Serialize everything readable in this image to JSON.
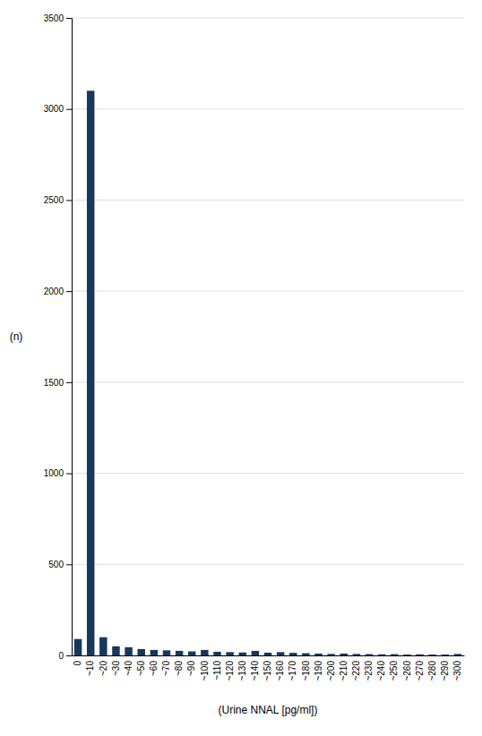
{
  "chart_data": {
    "type": "bar",
    "categories": [
      "0",
      "~10",
      "~20",
      "~30",
      "~40",
      "~50",
      "~60",
      "~70",
      "~80",
      "~90",
      "~100",
      "~110",
      "~120",
      "~130",
      "~140",
      "~150",
      "~160",
      "~170",
      "~180",
      "~190",
      "~200",
      "~210",
      "~220",
      "~230",
      "~240",
      "~250",
      "~260",
      "~270",
      "~280",
      "~290",
      "~300"
    ],
    "values": [
      90,
      3100,
      100,
      50,
      45,
      35,
      30,
      28,
      25,
      22,
      30,
      20,
      18,
      16,
      25,
      15,
      18,
      14,
      12,
      10,
      8,
      10,
      8,
      7,
      6,
      7,
      5,
      6,
      5,
      5,
      8
    ],
    "color": "#17375E",
    "xlabel": "(Urine NNAL [pg/ml])",
    "ylabel": "(n)",
    "ylim": [
      0,
      3500
    ],
    "yticks": [
      0,
      500,
      1000,
      1500,
      2000,
      2500,
      3000,
      3500
    ],
    "grid": true
  }
}
